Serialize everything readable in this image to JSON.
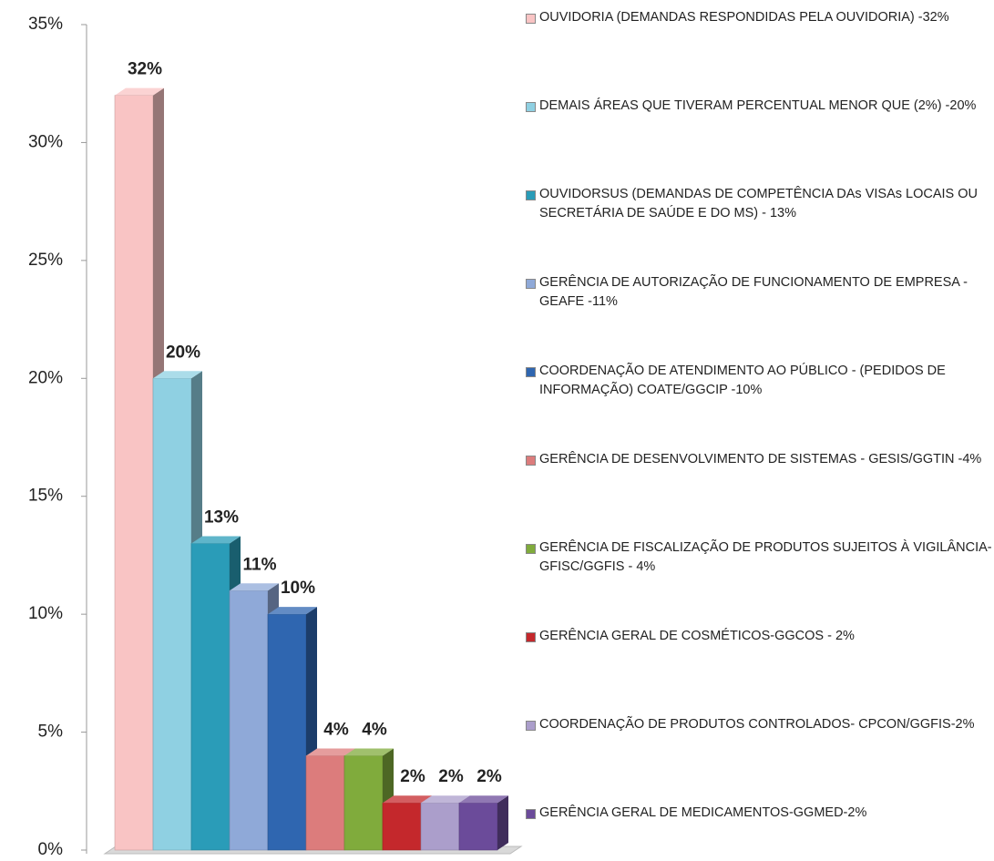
{
  "chart_data": {
    "type": "bar3d",
    "series": [
      {
        "name": "OUVIDORIA (DEMANDAS RESPONDIDAS PELA OUVIDORIA) -32%",
        "color": "#f9c4c4",
        "values": [
          32
        ],
        "value_labels": [
          "32%"
        ]
      },
      {
        "name": "DEMAIS ÁREAS QUE TIVERAM PERCENTUAL MENOR QUE (2%) -20%",
        "color": "#8fd0e2",
        "values": [
          20
        ],
        "value_labels": [
          "20%"
        ]
      },
      {
        "name": "OUVIDORSUS (DEMANDAS DE COMPETÊNCIA DAs VISAs LOCAIS OU SECRETÁRIA DE SAÚDE E DO MS) - 13%",
        "color": "#2a9cb8",
        "values": [
          13
        ],
        "value_labels": [
          "13%"
        ]
      },
      {
        "name": "GERÊNCIA DE AUTORIZAÇÃO DE FUNCIONAMENTO DE EMPRESA - GEAFE -11%",
        "color": "#8fa9d8",
        "values": [
          11
        ],
        "value_labels": [
          "11%"
        ]
      },
      {
        "name": "COORDENAÇÃO DE ATENDIMENTO AO PÚBLICO - (PEDIDOS DE INFORMAÇÃO) COATE/GGCIP -10%",
        "color": "#2f66b0",
        "values": [
          10
        ],
        "value_labels": [
          "10%"
        ]
      },
      {
        "name": "GERÊNCIA DE DESENVOLVIMENTO DE SISTEMAS - GESIS/GGTIN -4%",
        "color": "#dc7c7c",
        "values": [
          4
        ],
        "value_labels": [
          "4%"
        ]
      },
      {
        "name": "GERÊNCIA DE FISCALIZAÇÃO DE PRODUTOS SUJEITOS À VIGILÂNCIA-GFISC/GGFIS - 4%",
        "color": "#80ab3c",
        "values": [
          4
        ],
        "value_labels": [
          "4%"
        ]
      },
      {
        "name": "GERÊNCIA GERAL DE COSMÉTICOS-GGCOS - 2%",
        "color": "#c4282c",
        "values": [
          2
        ],
        "value_labels": [
          "2%"
        ]
      },
      {
        "name": "COORDENAÇÃO DE PRODUTOS CONTROLADOS- CPCON/GGFIS-2%",
        "color": "#ab9ecb",
        "values": [
          2
        ],
        "value_labels": [
          "2%"
        ]
      },
      {
        "name": "GERÊNCIA GERAL DE MEDICAMENTOS-GGMED-2%",
        "color": "#6b4b9a",
        "values": [
          2
        ],
        "value_labels": [
          "2%"
        ]
      }
    ],
    "ylim": [
      0,
      35
    ],
    "yticks": [
      {
        "value": 0,
        "label": "0%"
      },
      {
        "value": 5,
        "label": "5%"
      },
      {
        "value": 10,
        "label": "10%"
      },
      {
        "value": 15,
        "label": "15%"
      },
      {
        "value": 20,
        "label": "20%"
      },
      {
        "value": 25,
        "label": "25%"
      },
      {
        "value": 30,
        "label": "30%"
      },
      {
        "value": 35,
        "label": "35%"
      }
    ],
    "legend": "right"
  }
}
